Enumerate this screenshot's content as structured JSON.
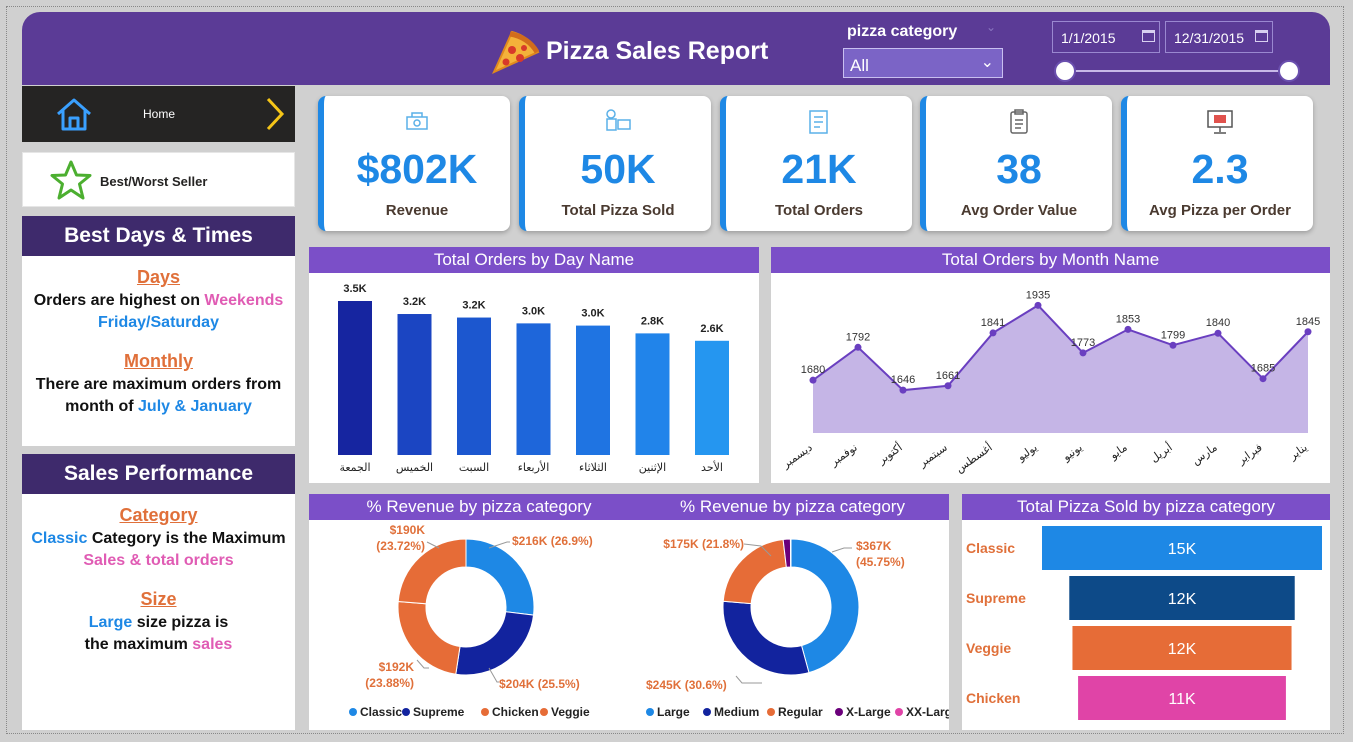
{
  "header": {
    "title": "Pizza Sales Report",
    "filter_label": "pizza category",
    "filter_value": "All",
    "date_start": "1/1/2015",
    "date_end": "12/31/2015"
  },
  "nav": {
    "home": "Home",
    "best_worst": "Best/Worst Seller"
  },
  "best_days": {
    "title": "Best Days & Times",
    "days_heading": "Days",
    "days_line1": "Orders are highest on",
    "days_highlight": "Weekends",
    "days_line2": "Friday/Saturday",
    "monthly_heading": "Monthly",
    "monthly_line1": "There are maximum orders from",
    "monthly_line2": "month of",
    "monthly_highlight": "July & January"
  },
  "sales_perf": {
    "title": "Sales Performance",
    "category_heading": "Category",
    "category_highlight": "Classic",
    "category_line1": "Category is the Maximum",
    "category_line2": "Sales & total orders",
    "size_heading": "Size",
    "size_highlight": "Large",
    "size_line1": "size pizza is",
    "size_line2": "the maximum",
    "size_highlight2": "sales"
  },
  "kpis": [
    {
      "value": "$802K",
      "label": "Revenue"
    },
    {
      "value": "50K",
      "label": "Total Pizza Sold"
    },
    {
      "value": "21K",
      "label": "Total Orders"
    },
    {
      "value": "38",
      "label": "Avg Order Value"
    },
    {
      "value": "2.3",
      "label": "Avg Pizza per Order"
    }
  ],
  "colors": {
    "header": "#5b3b96",
    "accent": "#1e88e5",
    "chart_head": "#7b4fc8"
  },
  "chart_data": [
    {
      "type": "bar",
      "title": "Total Orders by Day Name",
      "categories": [
        "الجمعة",
        "الخميس",
        "السبت",
        "الأربعاء",
        "الثلاثاء",
        "الإثنين",
        "الأحد"
      ],
      "values": [
        3538,
        3239,
        3158,
        3024,
        2973,
        2794,
        2624
      ],
      "labels": [
        "3.5K",
        "3.2K",
        "3.2K",
        "3.0K",
        "3.0K",
        "2.8K",
        "2.6K"
      ]
    },
    {
      "type": "area",
      "title": "Total Orders by Month Name",
      "categories": [
        "ديسمبر",
        "نوفمبر",
        "أكتوبر",
        "سبتمبر",
        "أغسطس",
        "يوليو",
        "يونيو",
        "مايو",
        "أبريل",
        "مارس",
        "فبراير",
        "يناير"
      ],
      "values": [
        1680,
        1792,
        1646,
        1661,
        1841,
        1935,
        1773,
        1853,
        1799,
        1840,
        1685,
        1845
      ],
      "ylim": [
        1500,
        1960
      ]
    },
    {
      "type": "pie",
      "title": "% Revenue by pizza category",
      "slices": [
        {
          "name": "Classic",
          "value": 26.9,
          "label1": "$216K (26.9%)",
          "label2": "",
          "color": "#1e88e5"
        },
        {
          "name": "Supreme",
          "value": 25.5,
          "label1": "$204K (25.5%)",
          "label2": "",
          "color": "#12239e"
        },
        {
          "name": "Chicken",
          "value": 23.88,
          "label1": "$192K",
          "label2": "(23.88%)",
          "color": "#e66c37"
        },
        {
          "name": "Veggie",
          "value": 23.72,
          "label1": "$190K",
          "label2": "(23.72%)",
          "color": "#e66c37"
        }
      ],
      "legend": [
        "Classic",
        "Supreme",
        "Chicken",
        "Veggie"
      ]
    },
    {
      "type": "pie",
      "title": "% Revenue by pizza category",
      "slices": [
        {
          "name": "Large",
          "value": 45.75,
          "label1": "$367K",
          "label2": "(45.75%)",
          "color": "#1e88e5"
        },
        {
          "name": "Medium",
          "value": 30.6,
          "label1": "$245K (30.6%)",
          "label2": "",
          "color": "#12239e"
        },
        {
          "name": "Regular",
          "value": 21.8,
          "label1": "$175K (21.8%)",
          "label2": "",
          "color": "#e66c37"
        },
        {
          "name": "X-Large",
          "value": 1.72,
          "label1": "",
          "label2": "",
          "color": "#6b007b"
        },
        {
          "name": "XX-Large",
          "value": 0.13,
          "label1": "",
          "label2": "",
          "color": "#e044a7"
        }
      ],
      "legend": [
        "Large",
        "Medium",
        "Regular",
        "X-Large",
        "XX-Large"
      ]
    },
    {
      "type": "bar",
      "orientation": "horizontal",
      "title": "Total Pizza Sold by pizza category",
      "categories": [
        "Classic",
        "Supreme",
        "Veggie",
        "Chicken"
      ],
      "values": [
        14888,
        11987,
        11649,
        11050
      ],
      "labels": [
        "15K",
        "12K",
        "12K",
        "11K"
      ],
      "colors": [
        "#1e88e5",
        "#0d4a88",
        "#e66c37",
        "#e044a7"
      ]
    }
  ]
}
